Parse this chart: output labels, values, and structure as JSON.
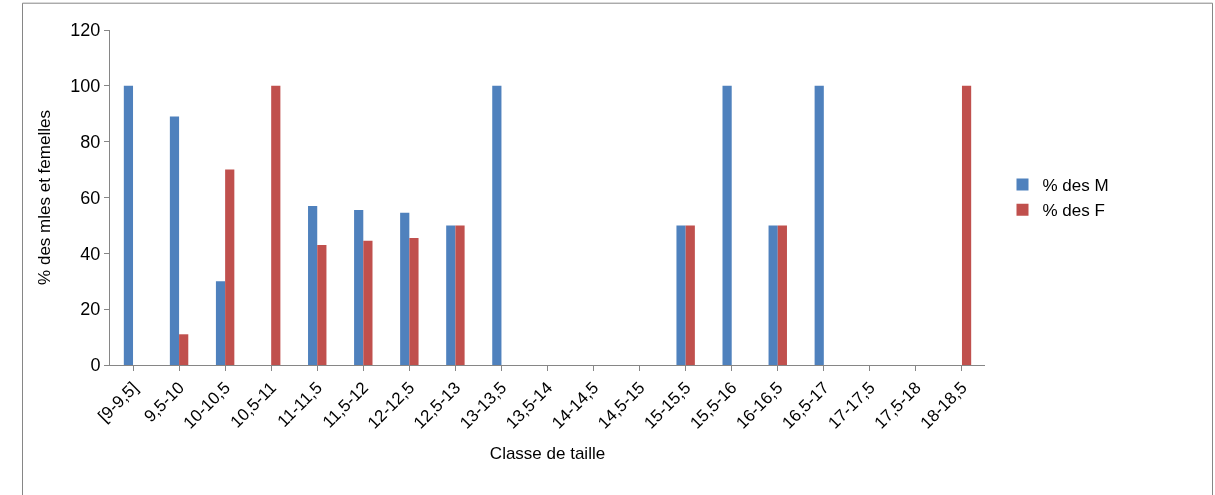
{
  "chart_data": {
    "type": "bar",
    "xlabel": "Classe de taille",
    "ylabel": "% des mles et femelles",
    "categories": [
      "[9-9,5]",
      "9,5-10",
      "10-10,5",
      "10,5-11",
      "11-11,5",
      "11,5-12",
      "12-12,5",
      "12,5-13",
      "13-13,5",
      "13,5-14",
      "14-14,5",
      "14,5-15",
      "15-15,5",
      "15,5-16",
      "16-16,5",
      "16,5-17",
      "17-17,5",
      "17,5-18",
      "18-18,5"
    ],
    "series": [
      {
        "name": "% des M",
        "color": "#4f81bd",
        "values": [
          100,
          89,
          30,
          0,
          57,
          55.5,
          54.5,
          50,
          100,
          0,
          0,
          0,
          50,
          100,
          50,
          100,
          0,
          0,
          0
        ]
      },
      {
        "name": "% des F",
        "color": "#c0504d",
        "values": [
          0,
          11,
          70,
          100,
          43,
          44.5,
          45.5,
          50,
          0,
          0,
          0,
          0,
          50,
          0,
          50,
          0,
          0,
          0,
          100
        ]
      }
    ],
    "ylim": [
      0,
      120
    ],
    "yticks": [
      0,
      20,
      40,
      60,
      80,
      100,
      120
    ],
    "grid": false,
    "legend": "right"
  }
}
